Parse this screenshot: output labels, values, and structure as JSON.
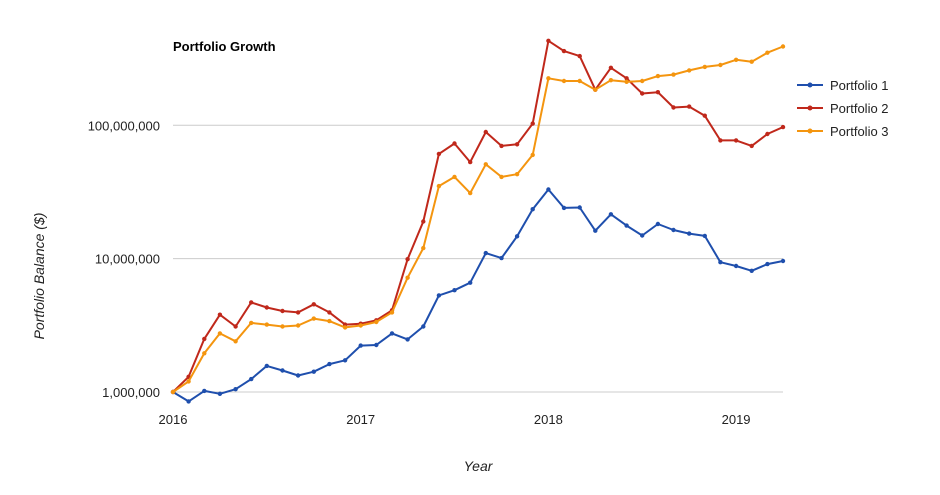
{
  "chart_data": {
    "type": "line",
    "title": "Portfolio Growth",
    "xlabel": "Year",
    "ylabel": "Portfolio Balance ($)",
    "yscale": "log",
    "ylim": [
      1000000,
      400000000
    ],
    "xlim": [
      "2016-01",
      "2019-04"
    ],
    "grid": true,
    "legend": "right",
    "x_ticks": [
      "2016",
      "2017",
      "2018",
      "2019"
    ],
    "y_ticks": [
      {
        "value": 1000000,
        "label": "1,000,000"
      },
      {
        "value": 10000000,
        "label": "10,000,000"
      },
      {
        "value": 100000000,
        "label": "100,000,000"
      }
    ],
    "x": [
      "2016-01",
      "2016-02",
      "2016-03",
      "2016-04",
      "2016-05",
      "2016-06",
      "2016-07",
      "2016-08",
      "2016-09",
      "2016-10",
      "2016-11",
      "2016-12",
      "2017-01",
      "2017-02",
      "2017-03",
      "2017-04",
      "2017-05",
      "2017-06",
      "2017-07",
      "2017-08",
      "2017-09",
      "2017-10",
      "2017-11",
      "2017-12",
      "2018-01",
      "2018-02",
      "2018-03",
      "2018-04",
      "2018-05",
      "2018-06",
      "2018-07",
      "2018-08",
      "2018-09",
      "2018-10",
      "2018-11",
      "2018-12",
      "2019-01",
      "2019-02",
      "2019-03",
      "2019-04"
    ],
    "series": [
      {
        "name": "Portfolio 1",
        "color": "#1f4fad",
        "values": [
          1000000,
          850000,
          1020000,
          970000,
          1050000,
          1250000,
          1570000,
          1450000,
          1330000,
          1420000,
          1620000,
          1730000,
          2230000,
          2250000,
          2750000,
          2480000,
          3100000,
          5300000,
          5800000,
          6600000,
          11000000,
          10100000,
          14700000,
          23500000,
          33000000,
          24000000,
          24200000,
          16200000,
          21500000,
          17700000,
          14900000,
          18200000,
          16400000,
          15400000,
          14800000,
          9400000,
          8800000,
          8100000,
          9100000,
          9600000
        ]
      },
      {
        "name": "Portfolio 2",
        "color": "#c0281b",
        "values": [
          1000000,
          1300000,
          2500000,
          3800000,
          3100000,
          4700000,
          4300000,
          4050000,
          3950000,
          4550000,
          3950000,
          3200000,
          3250000,
          3450000,
          4100000,
          9900000,
          19000000,
          61000000,
          73000000,
          53000000,
          89000000,
          70000000,
          72000000,
          103000000,
          430000000,
          360000000,
          330000000,
          185000000,
          270000000,
          225000000,
          173000000,
          177000000,
          136000000,
          138000000,
          118000000,
          77000000,
          77000000,
          70000000,
          86000000,
          97000000
        ]
      },
      {
        "name": "Portfolio 3",
        "color": "#f4950f",
        "values": [
          1000000,
          1200000,
          1950000,
          2750000,
          2400000,
          3300000,
          3200000,
          3100000,
          3150000,
          3550000,
          3400000,
          3050000,
          3150000,
          3350000,
          3950000,
          7200000,
          12000000,
          35000000,
          41000000,
          31000000,
          51000000,
          41000000,
          43000000,
          60000000,
          225000000,
          215000000,
          215000000,
          185000000,
          218000000,
          212000000,
          215000000,
          234000000,
          240000000,
          258000000,
          274000000,
          283000000,
          310000000,
          300000000,
          350000000,
          390000000
        ]
      }
    ]
  }
}
